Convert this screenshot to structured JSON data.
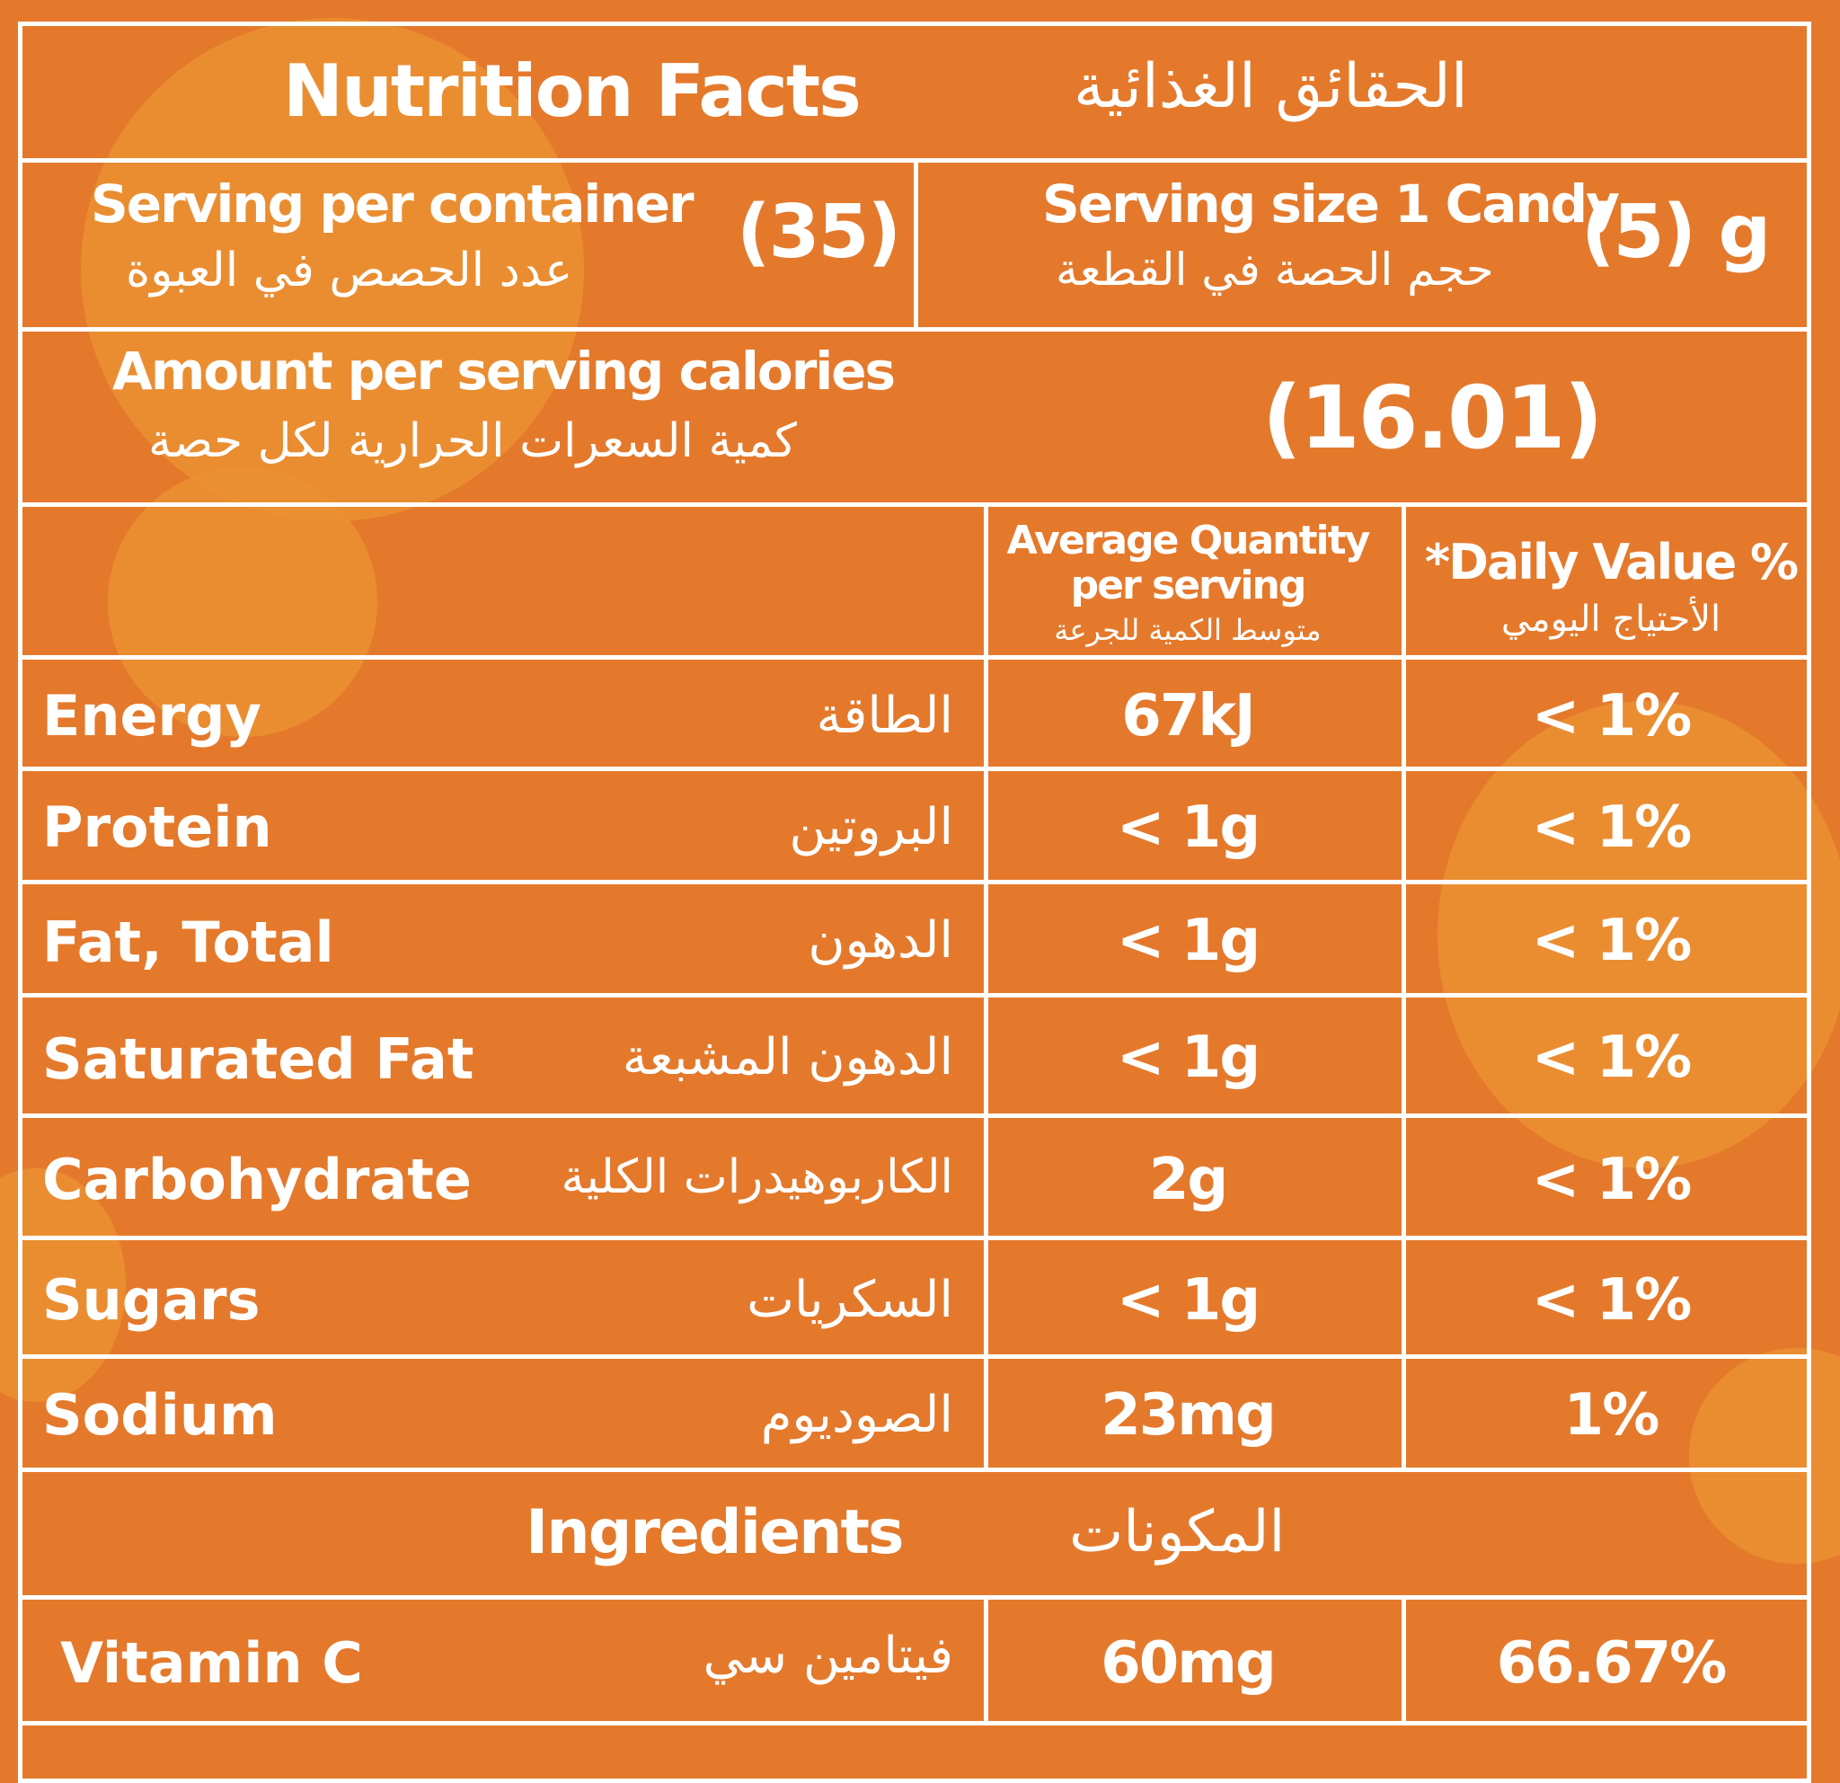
{
  "header": {
    "title_en": "Nutrition Facts",
    "title_ar": "الحقائق الغذائية"
  },
  "serving": {
    "per_container_en": "Serving per container",
    "per_container_ar": "عدد الحصص في العبوة",
    "per_container_value": "(35)",
    "size_en": "Serving size 1 Candy",
    "size_ar": "حجم الحصة في القطعة",
    "size_value": "(5) g"
  },
  "calories": {
    "label_en": "Amount per serving calories",
    "label_ar": "كمية السعرات الحرارية لكل حصة",
    "value": "(16.01)"
  },
  "columns": {
    "avg_en_1": "Average Quantity",
    "avg_en_2": "per serving",
    "avg_ar": "متوسط الكمية للجرعة",
    "dv_en": "*Daily Value %",
    "dv_ar": "الأحتياج اليومي"
  },
  "nutrients": [
    {
      "en": "Energy",
      "ar": "الطاقة",
      "qty": "67kJ",
      "dv": "< 1%"
    },
    {
      "en": "Protein",
      "ar": "البروتين",
      "qty": "< 1g",
      "dv": "< 1%"
    },
    {
      "en": "Fat, Total",
      "ar": "الدهون",
      "qty": "< 1g",
      "dv": "< 1%"
    },
    {
      "en": "Saturated Fat",
      "ar": "الدهون المشبعة",
      "qty": "< 1g",
      "dv": "< 1%"
    },
    {
      "en": "Carbohydrate",
      "ar": "الكاربوهيدرات الكلية",
      "qty": "2g",
      "dv": "< 1%"
    },
    {
      "en": "Sugars",
      "ar": "السكريات",
      "qty": "< 1g",
      "dv": "< 1%"
    },
    {
      "en": "Sodium",
      "ar": "الصوديوم",
      "qty": "23mg",
      "dv": "1%"
    }
  ],
  "ingredients": {
    "title_en": "Ingredients",
    "title_ar": "المكونات",
    "items": [
      {
        "en": "Vitamin C",
        "ar": "فيتامين سي",
        "qty": "60mg",
        "dv": "66.67%"
      }
    ]
  }
}
